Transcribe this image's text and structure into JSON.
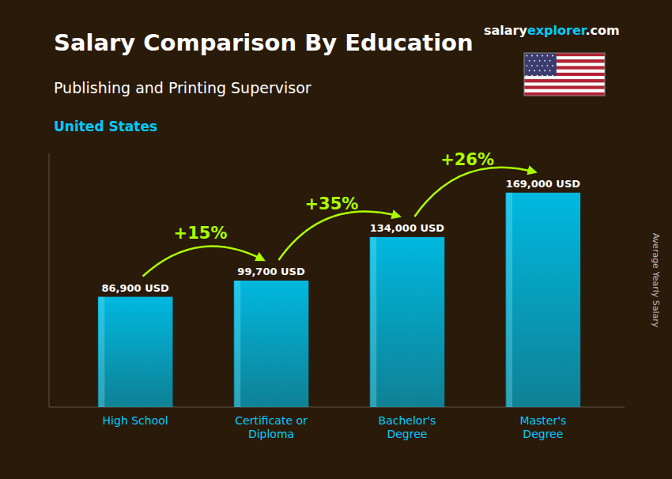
{
  "chart_data": {
    "type": "bar",
    "title": "Salary Comparison By Education",
    "subtitle": "Publishing and Printing Supervisor",
    "categories": [
      "High School",
      "Certificate or\nDiploma",
      "Bachelor's\nDegree",
      "Master's\nDegree"
    ],
    "values": [
      86900,
      99700,
      134000,
      169000
    ],
    "value_labels": [
      "86,900 USD",
      "99,700 USD",
      "134,000 USD",
      "169,000 USD"
    ],
    "data_labels": true,
    "color": "#00b8e0",
    "ylim": [
      0,
      200000
    ],
    "ylabel": "Average Yearly Salary",
    "tick_labels": "x",
    "grid": false,
    "annotations": [
      {
        "text": "+15%",
        "color": "#aaff00",
        "from": 0,
        "to": 1
      },
      {
        "text": "+35%",
        "color": "#aaff00",
        "from": 1,
        "to": 2
      },
      {
        "text": "+26%",
        "color": "#aaff00",
        "from": 2,
        "to": 3
      },
      {
        "text": "United States",
        "color": "#00ccff"
      },
      {
        "text": [
          "salary",
          "explorer",
          ".com"
        ],
        "colors": [
          "#ffffff",
          "#00ccff",
          "#ffffff"
        ]
      }
    ]
  }
}
